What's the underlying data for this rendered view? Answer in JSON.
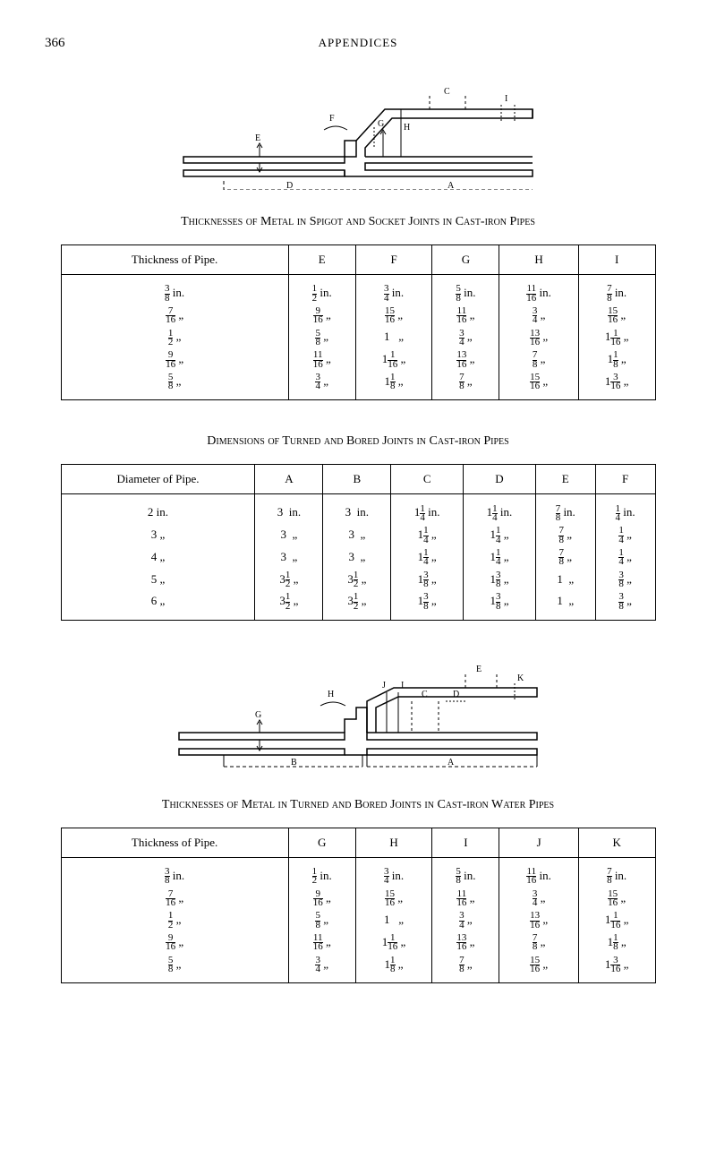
{
  "page_number": "366",
  "header": "APPENDICES",
  "section1": {
    "title": "Thicknesses of Metal in Spigot and Socket Joints in Cast-iron Pipes",
    "headers": [
      "Thickness of Pipe.",
      "E",
      "F",
      "G",
      "H",
      "I"
    ],
    "cols": [
      "<span class='frac'><span class='n'>3</span><span class='d'>8</span></span> in.<br><span class='frac'><span class='n'>7</span><span class='d'>16</span></span> „<br><span class='frac'><span class='n'>1</span><span class='d'>2</span></span> „<br><span class='frac'><span class='n'>9</span><span class='d'>16</span></span> „<br><span class='frac'><span class='n'>5</span><span class='d'>8</span></span> „",
      "<span class='frac'><span class='n'>1</span><span class='d'>2</span></span> in.<br><span class='frac'><span class='n'>9</span><span class='d'>16</span></span> „<br><span class='frac'><span class='n'>5</span><span class='d'>8</span></span> „<br><span class='frac'><span class='n'>11</span><span class='d'>16</span></span> „<br><span class='frac'><span class='n'>3</span><span class='d'>4</span></span> „",
      "<span class='frac'><span class='n'>3</span><span class='d'>4</span></span> in.<br><span class='frac'><span class='n'>15</span><span class='d'>16</span></span> „<br>1&nbsp;&nbsp; „<br>1<span class='frac'><span class='n'>1</span><span class='d'>16</span></span> „<br>1<span class='frac'><span class='n'>1</span><span class='d'>8</span></span> „",
      "<span class='frac'><span class='n'>5</span><span class='d'>8</span></span> in.<br><span class='frac'><span class='n'>11</span><span class='d'>16</span></span> „<br><span class='frac'><span class='n'>3</span><span class='d'>4</span></span> „<br><span class='frac'><span class='n'>13</span><span class='d'>16</span></span> „<br><span class='frac'><span class='n'>7</span><span class='d'>8</span></span> „",
      "<span class='frac'><span class='n'>11</span><span class='d'>16</span></span> in.<br><span class='frac'><span class='n'>3</span><span class='d'>4</span></span> „<br><span class='frac'><span class='n'>13</span><span class='d'>16</span></span> „<br><span class='frac'><span class='n'>7</span><span class='d'>8</span></span> „<br><span class='frac'><span class='n'>15</span><span class='d'>16</span></span> „",
      "<span class='frac'><span class='n'>7</span><span class='d'>8</span></span> in.<br><span class='frac'><span class='n'>15</span><span class='d'>16</span></span> „<br>1<span class='frac'><span class='n'>1</span><span class='d'>16</span></span> „<br>1<span class='frac'><span class='n'>1</span><span class='d'>8</span></span> „<br>1<span class='frac'><span class='n'>3</span><span class='d'>16</span></span> „"
    ]
  },
  "section2": {
    "title": "Dimensions of Turned and Bored Joints in Cast-iron Pipes",
    "headers": [
      "Diameter of Pipe.",
      "A",
      "B",
      "C",
      "D",
      "E",
      "F"
    ],
    "cols": [
      "2 in.<br>3 „<br>4 „<br>5 „<br>6 „",
      "3&nbsp; in.<br>3&nbsp; „<br>3&nbsp; „<br>3<span class='frac'><span class='n'>1</span><span class='d'>2</span></span> „<br>3<span class='frac'><span class='n'>1</span><span class='d'>2</span></span> „",
      "3&nbsp; in.<br>3&nbsp; „<br>3&nbsp; „<br>3<span class='frac'><span class='n'>1</span><span class='d'>2</span></span> „<br>3<span class='frac'><span class='n'>1</span><span class='d'>2</span></span> „",
      "1<span class='frac'><span class='n'>1</span><span class='d'>4</span></span> in.<br>1<span class='frac'><span class='n'>1</span><span class='d'>4</span></span> „<br>1<span class='frac'><span class='n'>1</span><span class='d'>4</span></span> „<br>1<span class='frac'><span class='n'>3</span><span class='d'>8</span></span> „<br>1<span class='frac'><span class='n'>3</span><span class='d'>8</span></span> „",
      "1<span class='frac'><span class='n'>1</span><span class='d'>4</span></span> in.<br>1<span class='frac'><span class='n'>1</span><span class='d'>4</span></span> „<br>1<span class='frac'><span class='n'>1</span><span class='d'>4</span></span> „<br>1<span class='frac'><span class='n'>3</span><span class='d'>8</span></span> „<br>1<span class='frac'><span class='n'>3</span><span class='d'>8</span></span> „",
      "<span class='frac'><span class='n'>7</span><span class='d'>8</span></span> in.<br><span class='frac'><span class='n'>7</span><span class='d'>8</span></span> „<br><span class='frac'><span class='n'>7</span><span class='d'>8</span></span> „<br>1&nbsp; „<br>1&nbsp; „",
      "<span class='frac'><span class='n'>1</span><span class='d'>4</span></span> in.<br><span class='frac'><span class='n'>1</span><span class='d'>4</span></span> „<br><span class='frac'><span class='n'>1</span><span class='d'>4</span></span> „<br><span class='frac'><span class='n'>3</span><span class='d'>8</span></span> „<br><span class='frac'><span class='n'>3</span><span class='d'>8</span></span> „"
    ]
  },
  "section3": {
    "title": "Thicknesses of Metal in Turned and Bored Joints in Cast-iron Water Pipes",
    "headers": [
      "Thickness of Pipe.",
      "G",
      "H",
      "I",
      "J",
      "K"
    ],
    "cols": [
      "<span class='frac'><span class='n'>3</span><span class='d'>8</span></span> in.<br><span class='frac'><span class='n'>7</span><span class='d'>16</span></span> „<br><span class='frac'><span class='n'>1</span><span class='d'>2</span></span> „<br><span class='frac'><span class='n'>9</span><span class='d'>16</span></span> „<br><span class='frac'><span class='n'>5</span><span class='d'>8</span></span> „",
      "<span class='frac'><span class='n'>1</span><span class='d'>2</span></span> in.<br><span class='frac'><span class='n'>9</span><span class='d'>16</span></span> „<br><span class='frac'><span class='n'>5</span><span class='d'>8</span></span> „<br><span class='frac'><span class='n'>11</span><span class='d'>16</span></span> „<br><span class='frac'><span class='n'>3</span><span class='d'>4</span></span> „",
      "<span class='frac'><span class='n'>3</span><span class='d'>4</span></span> in.<br><span class='frac'><span class='n'>15</span><span class='d'>16</span></span> „<br>1&nbsp;&nbsp; „<br>1<span class='frac'><span class='n'>1</span><span class='d'>16</span></span> „<br>1<span class='frac'><span class='n'>1</span><span class='d'>8</span></span> „",
      "<span class='frac'><span class='n'>5</span><span class='d'>8</span></span> in.<br><span class='frac'><span class='n'>11</span><span class='d'>16</span></span> „<br><span class='frac'><span class='n'>3</span><span class='d'>4</span></span> „<br><span class='frac'><span class='n'>13</span><span class='d'>16</span></span> „<br><span class='frac'><span class='n'>7</span><span class='d'>8</span></span> „",
      "<span class='frac'><span class='n'>11</span><span class='d'>16</span></span> in.<br><span class='frac'><span class='n'>3</span><span class='d'>4</span></span> „<br><span class='frac'><span class='n'>13</span><span class='d'>16</span></span> „<br><span class='frac'><span class='n'>7</span><span class='d'>8</span></span> „<br><span class='frac'><span class='n'>15</span><span class='d'>16</span></span> „",
      "<span class='frac'><span class='n'>7</span><span class='d'>8</span></span> in.<br><span class='frac'><span class='n'>15</span><span class='d'>16</span></span> „<br>1<span class='frac'><span class='n'>1</span><span class='d'>16</span></span> „<br>1<span class='frac'><span class='n'>1</span><span class='d'>8</span></span> „<br>1<span class='frac'><span class='n'>3</span><span class='d'>16</span></span> „"
    ]
  },
  "diagram1": {
    "labels": [
      "A",
      "C",
      "D",
      "E",
      "F",
      "G",
      "H",
      "I"
    ]
  },
  "diagram2": {
    "labels": [
      "A",
      "B",
      "C",
      "D",
      "E",
      "G",
      "H",
      "I",
      "J",
      "K"
    ]
  }
}
